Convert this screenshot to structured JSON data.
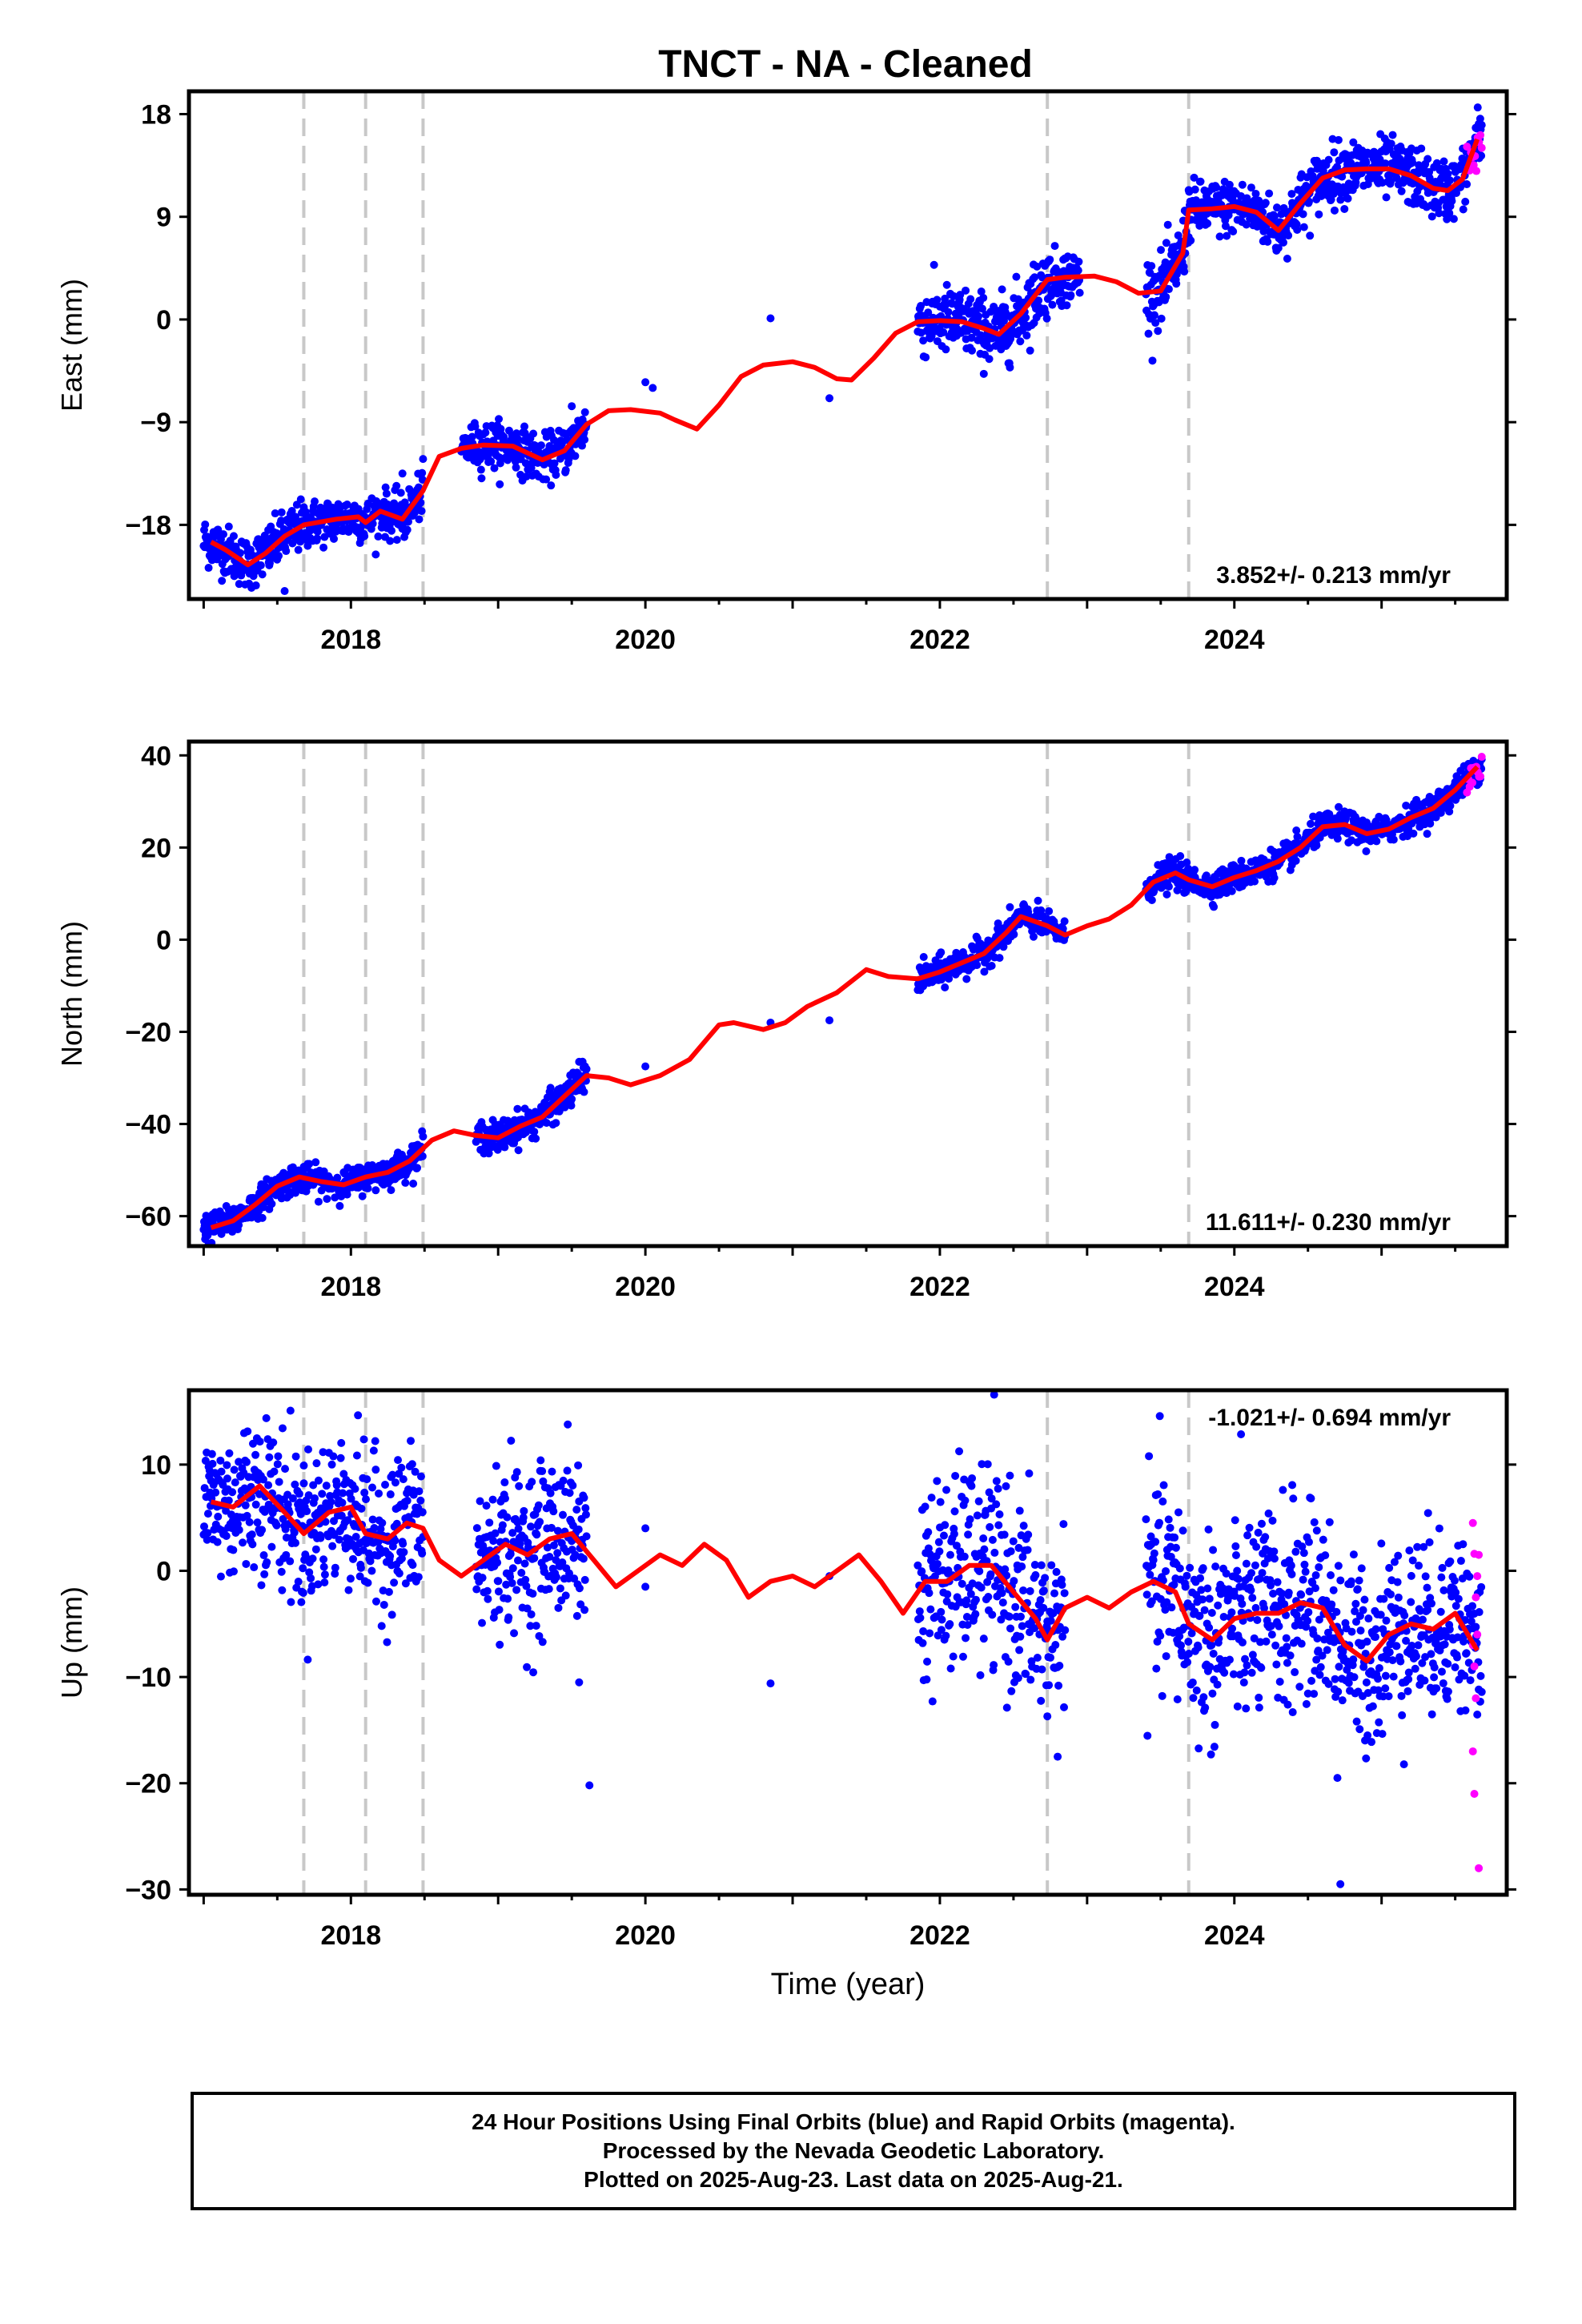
{
  "title": "TNCT  - NA - Cleaned",
  "colors": {
    "final_orbits": "#0000ff",
    "rapid_orbits": "#ff00ff",
    "model": "#ff0000",
    "event_lines": "#c8c8c8",
    "frame": "#000000"
  },
  "x_axis": {
    "label": "Time (year)",
    "range": [
      2016.9,
      2025.85
    ],
    "ticks": [
      "2018",
      "2020",
      "2022",
      "2024"
    ]
  },
  "event_years": [
    2017.68,
    2018.1,
    2018.49,
    2022.73,
    2023.69
  ],
  "chart_data": [
    {
      "type": "scatter",
      "component": "east",
      "ylabel": "East (mm)",
      "ylim": [
        -24.5,
        20
      ],
      "yticks": [
        "18",
        "9",
        "0",
        "−9",
        "−18"
      ],
      "ytick_values": [
        18,
        9,
        0,
        -9,
        -18
      ],
      "rate": "3.852+/- 0.213 mm/yr",
      "rate_position": "bottom-right",
      "model": {
        "x": [
          2017.05,
          2017.15,
          2017.3,
          2017.42,
          2017.55,
          2017.68,
          2017.9,
          2018.05,
          2018.1,
          2018.2,
          2018.35,
          2018.49,
          2018.6,
          2018.75,
          2018.9,
          2019.1,
          2019.3,
          2019.45,
          2019.6,
          2019.75,
          2019.9,
          2020.1,
          2020.2,
          2020.35,
          2020.5,
          2020.65,
          2020.8,
          2021.0,
          2021.15,
          2021.3,
          2021.4,
          2021.55,
          2021.7,
          2021.85,
          2022.0,
          2022.15,
          2022.3,
          2022.4,
          2022.55,
          2022.73,
          2022.85,
          2023.05,
          2023.2,
          2023.35,
          2023.5,
          2023.65,
          2023.69,
          2023.85,
          2024.0,
          2024.15,
          2024.3,
          2024.45,
          2024.6,
          2024.75,
          2024.9,
          2025.05,
          2025.2,
          2025.35,
          2025.45,
          2025.55,
          2025.65
        ],
        "y": [
          -19.5,
          -20.2,
          -21.5,
          -20.5,
          -19,
          -18,
          -17.5,
          -17.3,
          -17.8,
          -16.8,
          -17.5,
          -15,
          -12,
          -11.3,
          -11,
          -11.1,
          -12.3,
          -11.5,
          -9.2,
          -8,
          -7.9,
          -8.2,
          -8.8,
          -9.6,
          -7.5,
          -5,
          -4,
          -3.7,
          -4.2,
          -5.2,
          -5.3,
          -3.4,
          -1.2,
          -0.2,
          -0.1,
          -0.2,
          -0.8,
          -1.3,
          0.5,
          3.5,
          3.7,
          3.8,
          3.3,
          2.3,
          2.5,
          5.8,
          9.6,
          9.7,
          9.9,
          9.4,
          7.8,
          10.2,
          12.4,
          13.1,
          13.2,
          13.2,
          12.6,
          11.5,
          11.3,
          12.3,
          15.8
        ]
      },
      "series": [
        {
          "name": "Final Orbits",
          "segments": [
            [
              2017.0,
              2017.68,
              -20.3,
              1.1
            ],
            [
              2017.68,
              2018.49,
              -17.8,
              1.0
            ],
            [
              2018.75,
              2019.6,
              -11.8,
              1.0
            ],
            [
              2021.85,
              2022.73,
              -0.3,
              1.5
            ],
            [
              2022.73,
              2022.95,
              3.5,
              1.2
            ],
            [
              2023.4,
              2023.69,
              3.5,
              1.5
            ],
            [
              2023.69,
              2024.45,
              9.2,
              1.2
            ],
            [
              2024.45,
              2025.45,
              13.0,
              1.3
            ],
            [
              2025.45,
              2025.68,
              13.5,
              1.3
            ]
          ],
          "outliers": [
            [
              2020.0,
              -5.5
            ],
            [
              2020.05,
              -6.0
            ],
            [
              2020.85,
              0.1
            ],
            [
              2021.25,
              -6.9
            ],
            [
              2019.5,
              -7.6
            ],
            [
              2017.55,
              -23.8
            ],
            [
              2018.35,
              -13.5
            ]
          ]
        },
        {
          "name": "Rapid Orbits",
          "segments": [
            [
              2025.58,
              2025.68,
              15.5,
              1.8
            ]
          ]
        }
      ]
    },
    {
      "type": "scatter",
      "component": "north",
      "ylabel": "North (mm)",
      "ylim": [
        -66.5,
        43
      ],
      "yticks": [
        "40",
        "20",
        "0",
        "−20",
        "−40",
        "−60"
      ],
      "ytick_values": [
        40,
        20,
        0,
        -20,
        -40,
        -60
      ],
      "rate": "11.611+/- 0.230 mm/yr",
      "rate_position": "bottom-right",
      "model": {
        "x": [
          2017.05,
          2017.2,
          2017.35,
          2017.5,
          2017.65,
          2017.8,
          2017.95,
          2018.1,
          2018.25,
          2018.4,
          2018.55,
          2018.7,
          2018.85,
          2019.0,
          2019.15,
          2019.3,
          2019.45,
          2019.6,
          2019.75,
          2019.9,
          2020.1,
          2020.3,
          2020.5,
          2020.6,
          2020.8,
          2020.95,
          2021.1,
          2021.3,
          2021.5,
          2021.65,
          2021.85,
          2022.0,
          2022.15,
          2022.3,
          2022.45,
          2022.55,
          2022.73,
          2022.85,
          2023.0,
          2023.15,
          2023.3,
          2023.45,
          2023.6,
          2023.69,
          2023.85,
          2024.0,
          2024.15,
          2024.3,
          2024.45,
          2024.6,
          2024.75,
          2024.9,
          2025.05,
          2025.2,
          2025.35,
          2025.5,
          2025.65
        ],
        "y": [
          -62.5,
          -61,
          -57.5,
          -53.5,
          -51.5,
          -52.5,
          -53.2,
          -51.5,
          -50.5,
          -48,
          -43.5,
          -41.5,
          -42.5,
          -43,
          -40.5,
          -38.5,
          -34,
          -29.5,
          -30,
          -31.5,
          -29.5,
          -26,
          -18.5,
          -18,
          -19.5,
          -18,
          -14.5,
          -11.5,
          -6.5,
          -8,
          -8.5,
          -7,
          -5,
          -3,
          1.5,
          5,
          3,
          1,
          3,
          4.5,
          7.5,
          12.5,
          14.5,
          13,
          11.5,
          13.5,
          15,
          17,
          20,
          24.5,
          25,
          23,
          24,
          26.5,
          28.5,
          32.5,
          37.5
        ]
      },
      "series": [
        {
          "name": "Final Orbits",
          "segments": [
            [
              2017.0,
              2017.68,
              -56.5,
              1.6
            ],
            [
              2017.68,
              2018.49,
              -51.0,
              1.5
            ],
            [
              2018.85,
              2019.6,
              -37.5,
              1.7
            ],
            [
              2021.85,
              2022.73,
              -2.0,
              1.6
            ],
            [
              2022.73,
              2022.85,
              1.5,
              1.3
            ],
            [
              2023.4,
              2023.69,
              13.5,
              1.6
            ],
            [
              2023.69,
              2025.68,
              24.0,
              1.5
            ]
          ],
          "outliers": [
            [
              2019.35,
              -33.0
            ],
            [
              2019.55,
              -26.5
            ],
            [
              2020.0,
              -27.5
            ],
            [
              2020.85,
              -18.0
            ],
            [
              2021.25,
              -17.5
            ]
          ]
        },
        {
          "name": "Rapid Orbits",
          "segments": [
            [
              2025.58,
              2025.68,
              37.5,
              2.0
            ]
          ]
        }
      ]
    },
    {
      "type": "scatter",
      "component": "up",
      "ylabel": "Up (mm)",
      "ylim": [
        -30.5,
        17
      ],
      "yticks": [
        "10",
        "0",
        "−10",
        "−20",
        "−30"
      ],
      "ytick_values": [
        10,
        0,
        -10,
        -20,
        -30
      ],
      "rate": "-1.021+/- 0.694 mm/yr",
      "rate_position": "top-right",
      "model": {
        "x": [
          2017.05,
          2017.2,
          2017.38,
          2017.55,
          2017.68,
          2017.85,
          2018.0,
          2018.1,
          2018.25,
          2018.38,
          2018.49,
          2018.6,
          2018.75,
          2018.9,
          2019.05,
          2019.2,
          2019.35,
          2019.5,
          2019.65,
          2019.8,
          2019.95,
          2020.1,
          2020.25,
          2020.4,
          2020.55,
          2020.7,
          2020.85,
          2021.0,
          2021.15,
          2021.3,
          2021.45,
          2021.6,
          2021.75,
          2021.9,
          2022.05,
          2022.2,
          2022.35,
          2022.5,
          2022.65,
          2022.73,
          2022.85,
          2023.0,
          2023.15,
          2023.3,
          2023.45,
          2023.6,
          2023.69,
          2023.85,
          2024.0,
          2024.15,
          2024.3,
          2024.45,
          2024.6,
          2024.75,
          2024.9,
          2025.05,
          2025.2,
          2025.35,
          2025.5,
          2025.65
        ],
        "y": [
          6.5,
          6,
          8,
          5.5,
          3.5,
          5.5,
          6,
          3.5,
          3,
          4.5,
          4,
          1,
          -0.5,
          1,
          2.5,
          1.5,
          3,
          3.5,
          1,
          -1.5,
          0,
          1.5,
          0.5,
          2.5,
          1,
          -2.5,
          -1,
          -0.5,
          -1.5,
          0,
          1.5,
          -1,
          -4,
          -1,
          -1,
          0.5,
          0.5,
          -2,
          -4.5,
          -6.5,
          -3.5,
          -2.5,
          -3.5,
          -2,
          -1,
          -2,
          -5,
          -6.5,
          -4.5,
          -4,
          -4,
          -3,
          -3.5,
          -7,
          -8.5,
          -6,
          -5,
          -5.5,
          -4,
          -7.5
        ]
      },
      "series": [
        {
          "name": "Final Orbits",
          "segments": [
            [
              2017.0,
              2017.68,
              7.0,
              3.6
            ],
            [
              2017.68,
              2018.49,
              5.0,
              3.6
            ],
            [
              2018.85,
              2019.6,
              1.5,
              3.8
            ],
            [
              2021.85,
              2022.73,
              0.0,
              4.6
            ],
            [
              2022.73,
              2022.85,
              -6.0,
              3.6
            ],
            [
              2023.4,
              2024.45,
              -3.0,
              4.8
            ],
            [
              2024.45,
              2025.68,
              -6.0,
              4.2
            ]
          ],
          "outliers": [
            [
              2019.62,
              -20.2
            ],
            [
              2019.55,
              -10.5
            ],
            [
              2020.0,
              4.0
            ],
            [
              2020.0,
              -1.5
            ],
            [
              2020.85,
              -10.6
            ],
            [
              2021.25,
              -0.5
            ],
            [
              2022.8,
              -17.5
            ],
            [
              2024.72,
              -29.5
            ],
            [
              2024.7,
              -19.5
            ]
          ]
        },
        {
          "name": "Rapid Orbits",
          "points": [
            [
              2025.62,
              4.5
            ],
            [
              2025.63,
              1.6
            ],
            [
              2025.64,
              -2.5
            ],
            [
              2025.65,
              -6.0
            ],
            [
              2025.63,
              -9.0
            ],
            [
              2025.64,
              -12.0
            ],
            [
              2025.62,
              -17.0
            ],
            [
              2025.63,
              -21.0
            ],
            [
              2025.66,
              -28.0
            ],
            [
              2025.66,
              1.5
            ],
            [
              2025.65,
              -0.5
            ],
            [
              2025.62,
              -7.0
            ]
          ]
        }
      ]
    }
  ],
  "footer": {
    "line1": "24 Hour Positions Using Final Orbits (blue) and Rapid Orbits (magenta).",
    "line2": "Processed by the Nevada Geodetic Laboratory.",
    "line3": "Plotted on 2025-Aug-23. Last data on 2025-Aug-21."
  }
}
